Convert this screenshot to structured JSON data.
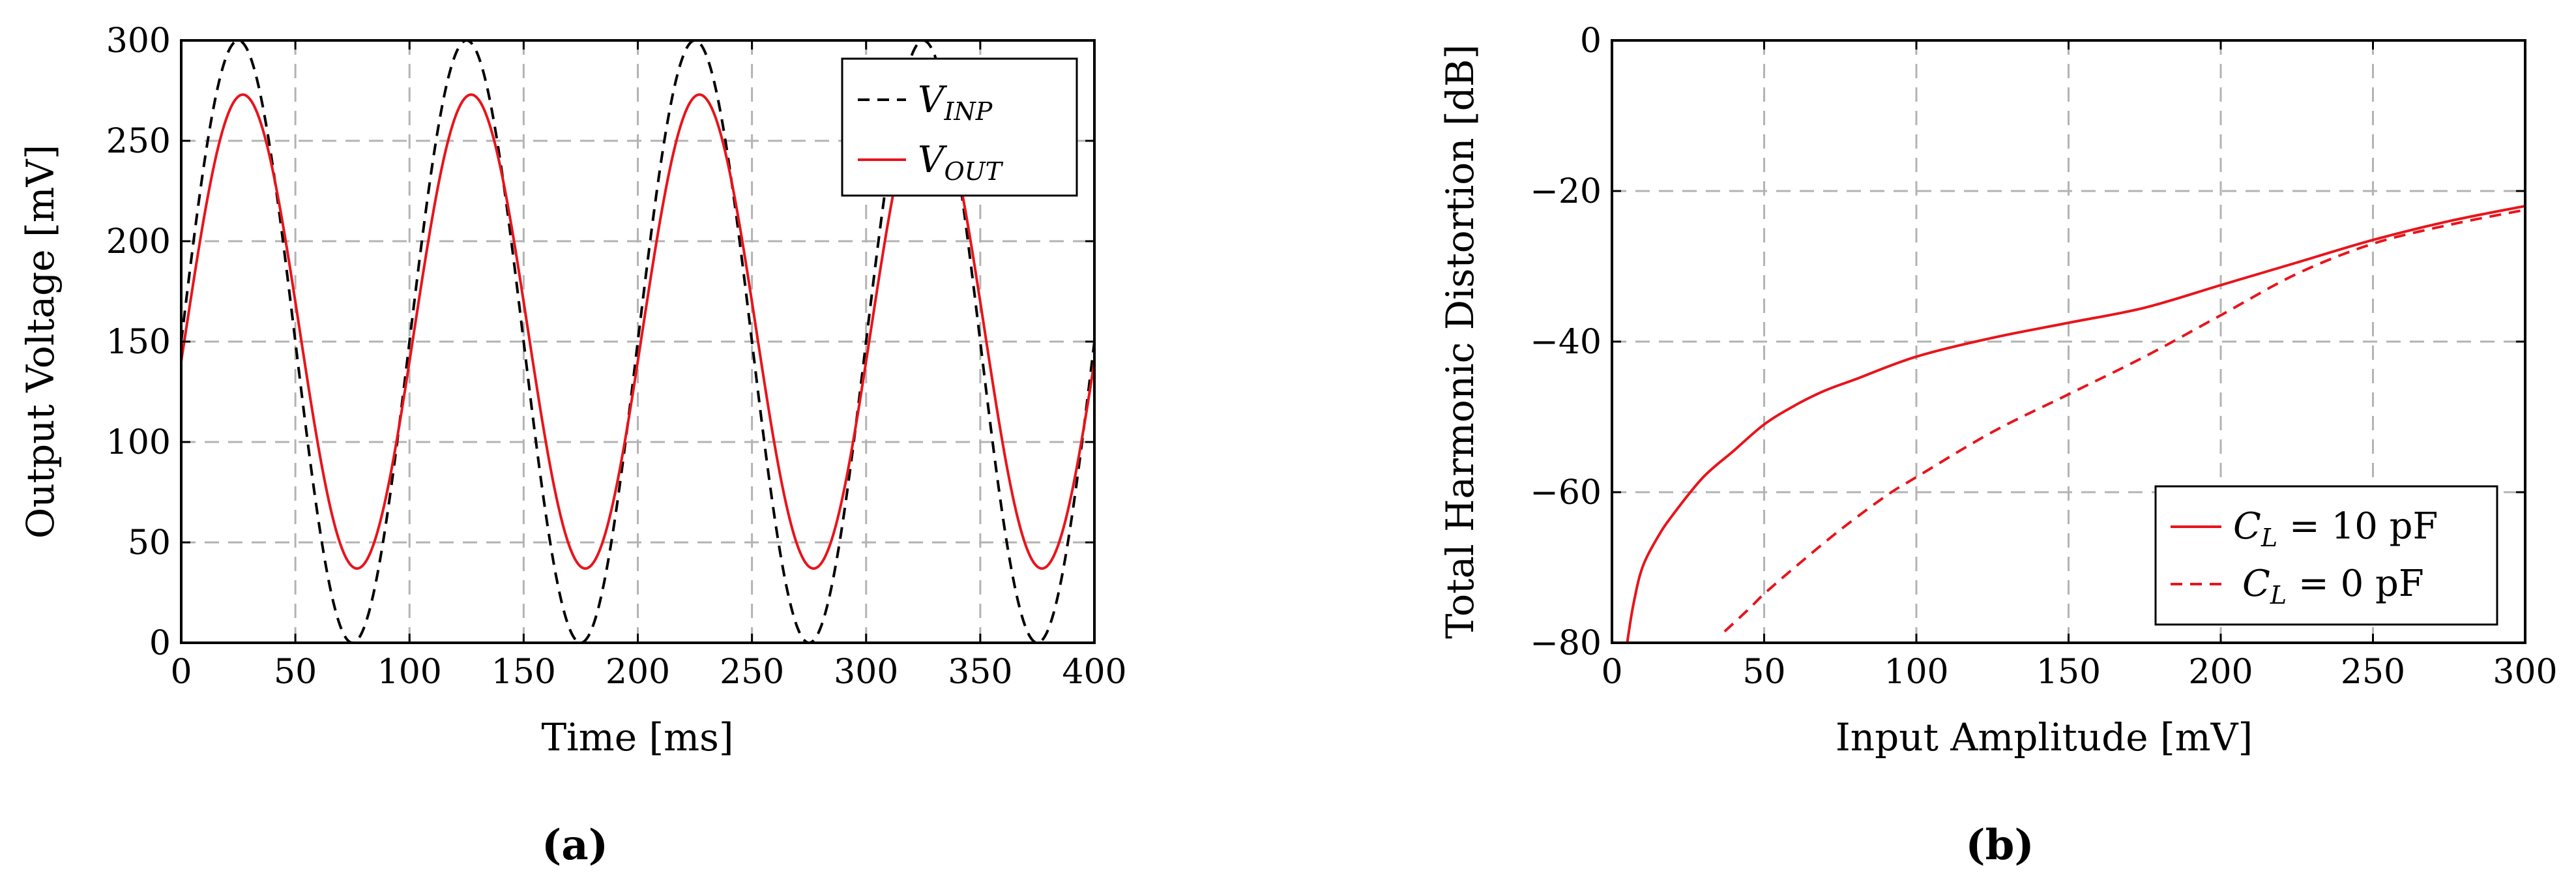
{
  "chart_data": [
    {
      "type": "line",
      "panel": "a",
      "caption": "(a)",
      "xlabel": "Time [ms]",
      "ylabel": "Output Voltage [mV]",
      "xlim": [
        0,
        400
      ],
      "ylim": [
        0,
        300
      ],
      "xticks": [
        "0",
        "50",
        "100",
        "150",
        "200",
        "250",
        "300",
        "350",
        "400"
      ],
      "yticks": [
        "0",
        "50",
        "100",
        "150",
        "200",
        "250",
        "300"
      ],
      "grid": true,
      "legend_position": "top-right",
      "series": [
        {
          "name": "V_INP",
          "legend_main": "V",
          "legend_sub": "INP",
          "color": "#000000",
          "dash": "dashed",
          "offset": 150,
          "amplitude": 150,
          "period_ms": 100,
          "phase_ms": 0
        },
        {
          "name": "V_OUT",
          "legend_main": "V",
          "legend_sub": "OUT",
          "color": "#e8141b",
          "dash": "solid",
          "offset": 155,
          "amplitude": 118,
          "period_ms": 100,
          "phase_ms": 2
        }
      ]
    },
    {
      "type": "line",
      "panel": "b",
      "caption": "(b)",
      "xlabel": "Input Amplitude [mV]",
      "ylabel": "Total Harmonic Distortion [dB]",
      "xlim": [
        0,
        300
      ],
      "ylim": [
        -80,
        0
      ],
      "xticks": [
        "0",
        "50",
        "100",
        "150",
        "200",
        "250",
        "300"
      ],
      "yticks": [
        "0",
        "−20",
        "−40",
        "−60",
        "−80"
      ],
      "grid": true,
      "legend_position": "bottom-right",
      "series": [
        {
          "name": "C_L = 10 pF",
          "legend_main": "C",
          "legend_sub": "L",
          "legend_rest": " = 10 pF",
          "color": "#e8141b",
          "dash": "solid",
          "x": [
            5,
            7,
            10,
            15,
            20,
            30,
            40,
            50,
            60,
            70,
            80,
            100,
            125,
            150,
            175,
            200,
            225,
            250,
            275,
            300
          ],
          "y": [
            -80,
            -75,
            -70,
            -66,
            -63,
            -58,
            -54.5,
            -51,
            -48.5,
            -46.5,
            -45,
            -42,
            -39.5,
            -37.5,
            -35.5,
            -32.5,
            -29.5,
            -26.5,
            -24,
            -22
          ]
        },
        {
          "name": "C_L = 0 pF",
          "legend_main": "C",
          "legend_sub": "L",
          "legend_rest": " = 0 pF",
          "color": "#e8141b",
          "dash": "dashed",
          "x": [
            37,
            45,
            50,
            60,
            75,
            90,
            100,
            125,
            150,
            175,
            200,
            225,
            250,
            275,
            300
          ],
          "y": [
            -78.5,
            -75.5,
            -73.5,
            -70,
            -65,
            -60.5,
            -58,
            -52,
            -47,
            -42,
            -36.5,
            -31,
            -27,
            -24.5,
            -22.5
          ]
        }
      ]
    }
  ]
}
